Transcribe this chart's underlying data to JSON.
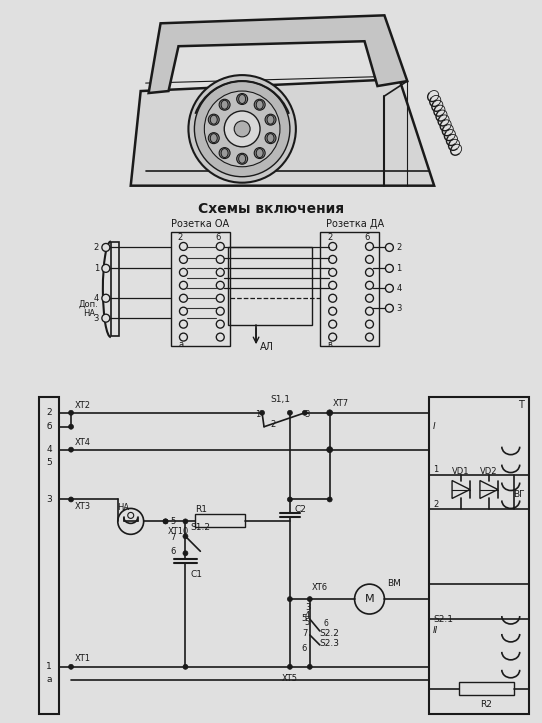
{
  "bg_color": "#e0e0e0",
  "title_schema": "Схемы включения",
  "label_oa": "Розетка ОА",
  "label_da": "Розетка ДА",
  "label_dop": "Доп.\nНА",
  "label_al": "АЛ",
  "label_xt2": "ХТ2",
  "label_xt4": "ХТ4",
  "label_xt3": "ХТ3",
  "label_xt1": "ХТ1",
  "label_xt5": "ХТ5",
  "label_xt6": "ХТ6",
  "label_xt7": "ХТ7",
  "label_xt10": "ХТ10",
  "label_s11": "S1,1",
  "label_s12": "S1.2",
  "label_s21": "S2.1",
  "label_s22": "S2.2",
  "label_s23": "S2.3",
  "label_r1": "R1",
  "label_r2": "R2",
  "label_c1": "C1",
  "label_c2": "C2",
  "label_ha": "НА",
  "label_bm": "ВМ",
  "label_vd1": "VD1",
  "label_vd2": "VD2",
  "label_bf": "ВГ",
  "label_T": "T",
  "line_color": "#1a1a1a",
  "text_color": "#1a1a1a"
}
